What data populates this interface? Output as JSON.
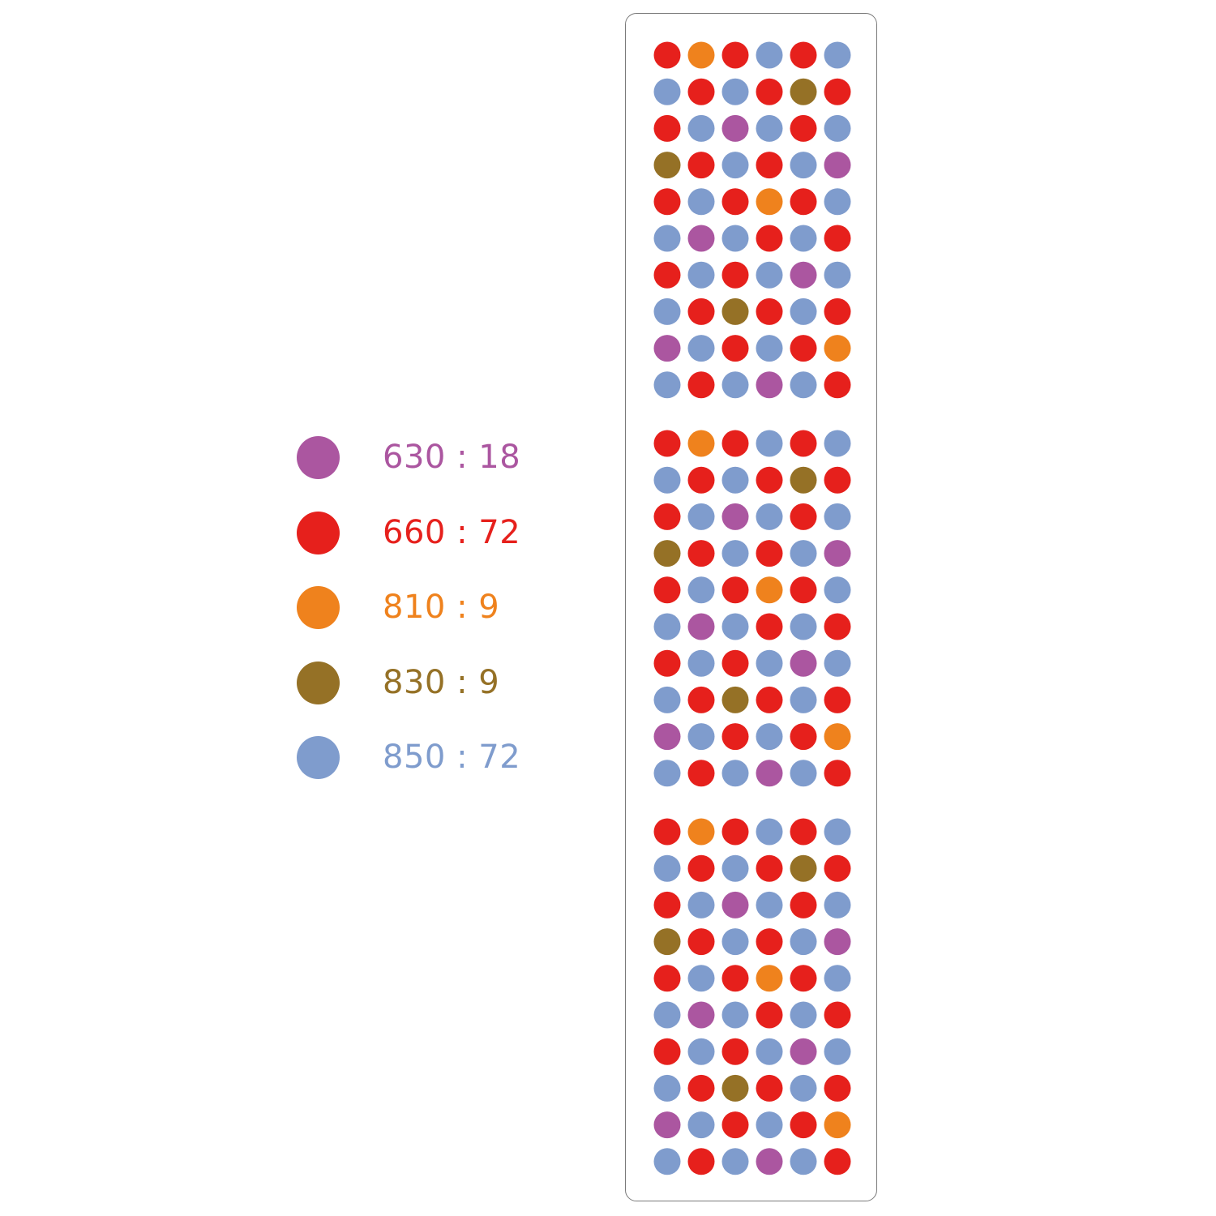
{
  "colors": {
    "630": "#ab56a0",
    "660": "#e6201c",
    "810": "#ef821d",
    "830": "#957126",
    "850": "#7f9ccd"
  },
  "legend": [
    {
      "label": "630 : 18",
      "key": "630"
    },
    {
      "label": "660 : 72",
      "key": "660"
    },
    {
      "label": "810 : 9",
      "key": "810"
    },
    {
      "label": "830 : 9",
      "key": "830"
    },
    {
      "label": "850 : 72",
      "key": "850"
    }
  ],
  "module_pattern": [
    [
      "660",
      "810",
      "660",
      "850",
      "660",
      "850"
    ],
    [
      "850",
      "660",
      "850",
      "660",
      "830",
      "660"
    ],
    [
      "660",
      "850",
      "630",
      "850",
      "660",
      "850"
    ],
    [
      "830",
      "660",
      "850",
      "660",
      "850",
      "630"
    ],
    [
      "660",
      "850",
      "660",
      "810",
      "660",
      "850"
    ],
    [
      "850",
      "630",
      "850",
      "660",
      "850",
      "660"
    ],
    [
      "660",
      "850",
      "660",
      "850",
      "630",
      "850"
    ],
    [
      "850",
      "660",
      "830",
      "660",
      "850",
      "660"
    ],
    [
      "630",
      "850",
      "660",
      "850",
      "660",
      "810"
    ],
    [
      "850",
      "660",
      "850",
      "630",
      "850",
      "660"
    ]
  ],
  "module_count": 3
}
